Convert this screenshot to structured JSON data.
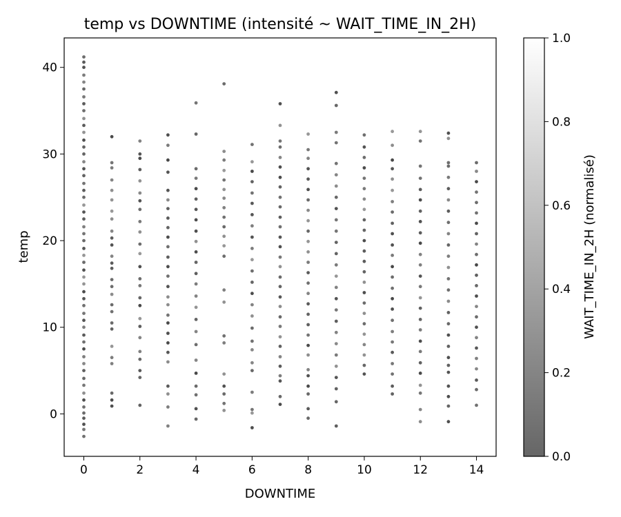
{
  "chart_data": {
    "type": "scatter",
    "title": "temp vs DOWNTIME (intensité ~ WAIT_TIME_IN_2H)",
    "xlabel": "DOWNTIME",
    "ylabel": "temp",
    "xlim": [
      -0.7,
      14.7
    ],
    "ylim": [
      -4.9,
      43.4
    ],
    "x_ticks": [
      0,
      2,
      4,
      6,
      8,
      10,
      12,
      14
    ],
    "y_ticks": [
      0,
      10,
      20,
      30,
      40
    ],
    "grid": false,
    "colorbar": {
      "label": "WAIT_TIME_IN_2H (normalisé)",
      "range": [
        0.0,
        1.0
      ],
      "ticks": [
        "0.0",
        "0.2",
        "0.4",
        "0.6",
        "0.8",
        "1.0"
      ],
      "colormap": "gray",
      "alpha": 0.6
    },
    "points_per_column": [
      {
        "x": 0,
        "y": [
          -2.6,
          -1.8,
          -1.2,
          -0.5,
          0.1,
          0.8,
          1.6,
          2.4,
          3.3,
          4.1,
          5.0,
          5.8,
          6.6,
          7.5,
          8.3,
          9.1,
          10.0,
          10.8,
          11.6,
          12.5,
          13.3,
          14.1,
          15.0,
          15.8,
          16.6,
          17.5,
          18.3,
          19.1,
          20.0,
          20.8,
          21.6,
          22.5,
          23.3,
          24.1,
          25.0,
          25.8,
          26.6,
          27.5,
          28.3,
          29.1,
          30.0,
          30.8,
          31.6,
          32.5,
          33.3,
          34.1,
          35.0,
          35.8,
          36.6,
          37.5,
          38.3,
          39.1,
          40.0,
          40.6,
          41.2
        ]
      },
      {
        "x": 1,
        "y": [
          0.9,
          1.6,
          2.4,
          5.8,
          6.5,
          7.8,
          9.8,
          10.5,
          11.8,
          12.6,
          13.8,
          14.7,
          15.5,
          16.8,
          17.4,
          18.2,
          19.5,
          20.3,
          21.1,
          22.5,
          23.4,
          24.7,
          25.8,
          27.0,
          28.4,
          29.0,
          32.0
        ]
      },
      {
        "x": 2,
        "y": [
          1.0,
          4.2,
          5.0,
          6.3,
          7.2,
          8.8,
          10.1,
          11.0,
          12.5,
          13.4,
          14.8,
          15.6,
          17.0,
          18.5,
          19.6,
          21.0,
          22.2,
          23.6,
          24.6,
          25.5,
          26.9,
          28.2,
          29.5,
          30.0,
          31.5
        ]
      },
      {
        "x": 3,
        "y": [
          -1.4,
          0.8,
          2.3,
          3.2,
          6.0,
          7.1,
          8.2,
          9.3,
          10.5,
          11.4,
          12.6,
          13.5,
          14.7,
          15.9,
          17.0,
          18.1,
          19.3,
          20.4,
          21.5,
          22.6,
          23.7,
          24.7,
          25.8,
          27.9,
          29.3,
          31.0,
          32.2
        ]
      },
      {
        "x": 4,
        "y": [
          -0.6,
          0.6,
          2.2,
          3.2,
          4.7,
          6.2,
          8.0,
          9.5,
          10.9,
          12.3,
          13.6,
          15.0,
          16.2,
          17.5,
          18.7,
          19.9,
          21.1,
          22.4,
          23.6,
          24.8,
          26.0,
          27.2,
          28.3,
          32.3,
          35.9
        ]
      },
      {
        "x": 5,
        "y": [
          0.4,
          1.2,
          2.3,
          3.2,
          4.6,
          8.2,
          9.0,
          12.9,
          14.3,
          18.2,
          19.4,
          20.5,
          21.6,
          22.7,
          23.8,
          24.9,
          25.9,
          27.0,
          28.1,
          29.3,
          30.3,
          38.1
        ]
      },
      {
        "x": 6,
        "y": [
          -1.6,
          0.1,
          0.5,
          2.5,
          5.0,
          5.9,
          7.4,
          8.4,
          9.9,
          11.3,
          12.6,
          13.9,
          15.2,
          16.5,
          17.8,
          19.1,
          20.4,
          21.7,
          23.0,
          24.3,
          25.5,
          26.8,
          28.0,
          29.1,
          31.1
        ]
      },
      {
        "x": 7,
        "y": [
          1.1,
          2.0,
          3.8,
          4.4,
          5.5,
          6.6,
          7.8,
          8.9,
          10.1,
          11.2,
          12.4,
          13.5,
          14.7,
          15.8,
          17.0,
          18.1,
          19.3,
          20.4,
          21.6,
          22.7,
          23.9,
          25.0,
          26.2,
          27.3,
          28.5,
          29.6,
          30.8,
          31.5,
          33.3,
          35.8
        ]
      },
      {
        "x": 8,
        "y": [
          -0.5,
          0.6,
          2.3,
          3.2,
          4.4,
          5.1,
          6.8,
          7.9,
          9.1,
          10.3,
          11.5,
          12.7,
          13.9,
          15.1,
          16.3,
          17.5,
          18.7,
          19.9,
          21.1,
          22.3,
          23.5,
          24.7,
          25.9,
          27.1,
          28.3,
          29.5,
          30.5,
          32.3
        ]
      },
      {
        "x": 9,
        "y": [
          -1.4,
          1.4,
          2.9,
          4.2,
          5.5,
          6.8,
          8.1,
          9.4,
          10.7,
          12.0,
          13.3,
          14.6,
          15.9,
          17.2,
          18.5,
          19.8,
          21.1,
          22.4,
          23.7,
          25.0,
          26.3,
          27.6,
          28.9,
          31.3,
          32.5,
          35.6,
          37.1
        ]
      },
      {
        "x": 10,
        "y": [
          4.6,
          5.6,
          6.8,
          8.0,
          9.2,
          10.4,
          11.6,
          12.8,
          14.0,
          15.2,
          16.4,
          17.6,
          18.8,
          20.0,
          21.2,
          22.4,
          23.6,
          24.8,
          26.0,
          27.2,
          28.4,
          29.6,
          30.8,
          32.2
        ]
      },
      {
        "x": 11,
        "y": [
          2.3,
          3.2,
          4.6,
          5.8,
          7.1,
          8.3,
          9.5,
          10.8,
          12.1,
          13.3,
          14.5,
          15.8,
          17.0,
          18.3,
          19.5,
          20.8,
          22.0,
          23.3,
          24.5,
          25.8,
          27.1,
          28.3,
          29.3,
          31.0,
          32.6
        ]
      },
      {
        "x": 12,
        "y": [
          -0.9,
          0.5,
          2.4,
          3.3,
          4.7,
          5.9,
          7.2,
          8.4,
          9.7,
          10.9,
          12.2,
          13.4,
          14.7,
          15.9,
          17.2,
          18.4,
          19.7,
          20.9,
          22.2,
          23.4,
          24.7,
          25.9,
          27.2,
          28.6,
          31.5,
          32.6
        ]
      },
      {
        "x": 13,
        "y": [
          -0.9,
          0.9,
          2.0,
          3.2,
          4.8,
          5.6,
          6.5,
          7.8,
          9.1,
          10.4,
          11.7,
          13.0,
          14.3,
          15.6,
          16.9,
          18.2,
          19.5,
          20.8,
          22.1,
          23.4,
          24.7,
          26.0,
          27.3,
          28.6,
          29.0,
          31.8,
          32.4
        ]
      },
      {
        "x": 14,
        "y": [
          1.0,
          2.8,
          3.9,
          5.2,
          6.4,
          7.6,
          8.8,
          10.0,
          11.2,
          12.4,
          13.6,
          14.8,
          16.0,
          17.2,
          18.4,
          19.6,
          20.8,
          22.0,
          23.2,
          24.4,
          25.6,
          26.8,
          28.0,
          29.0
        ]
      }
    ]
  }
}
